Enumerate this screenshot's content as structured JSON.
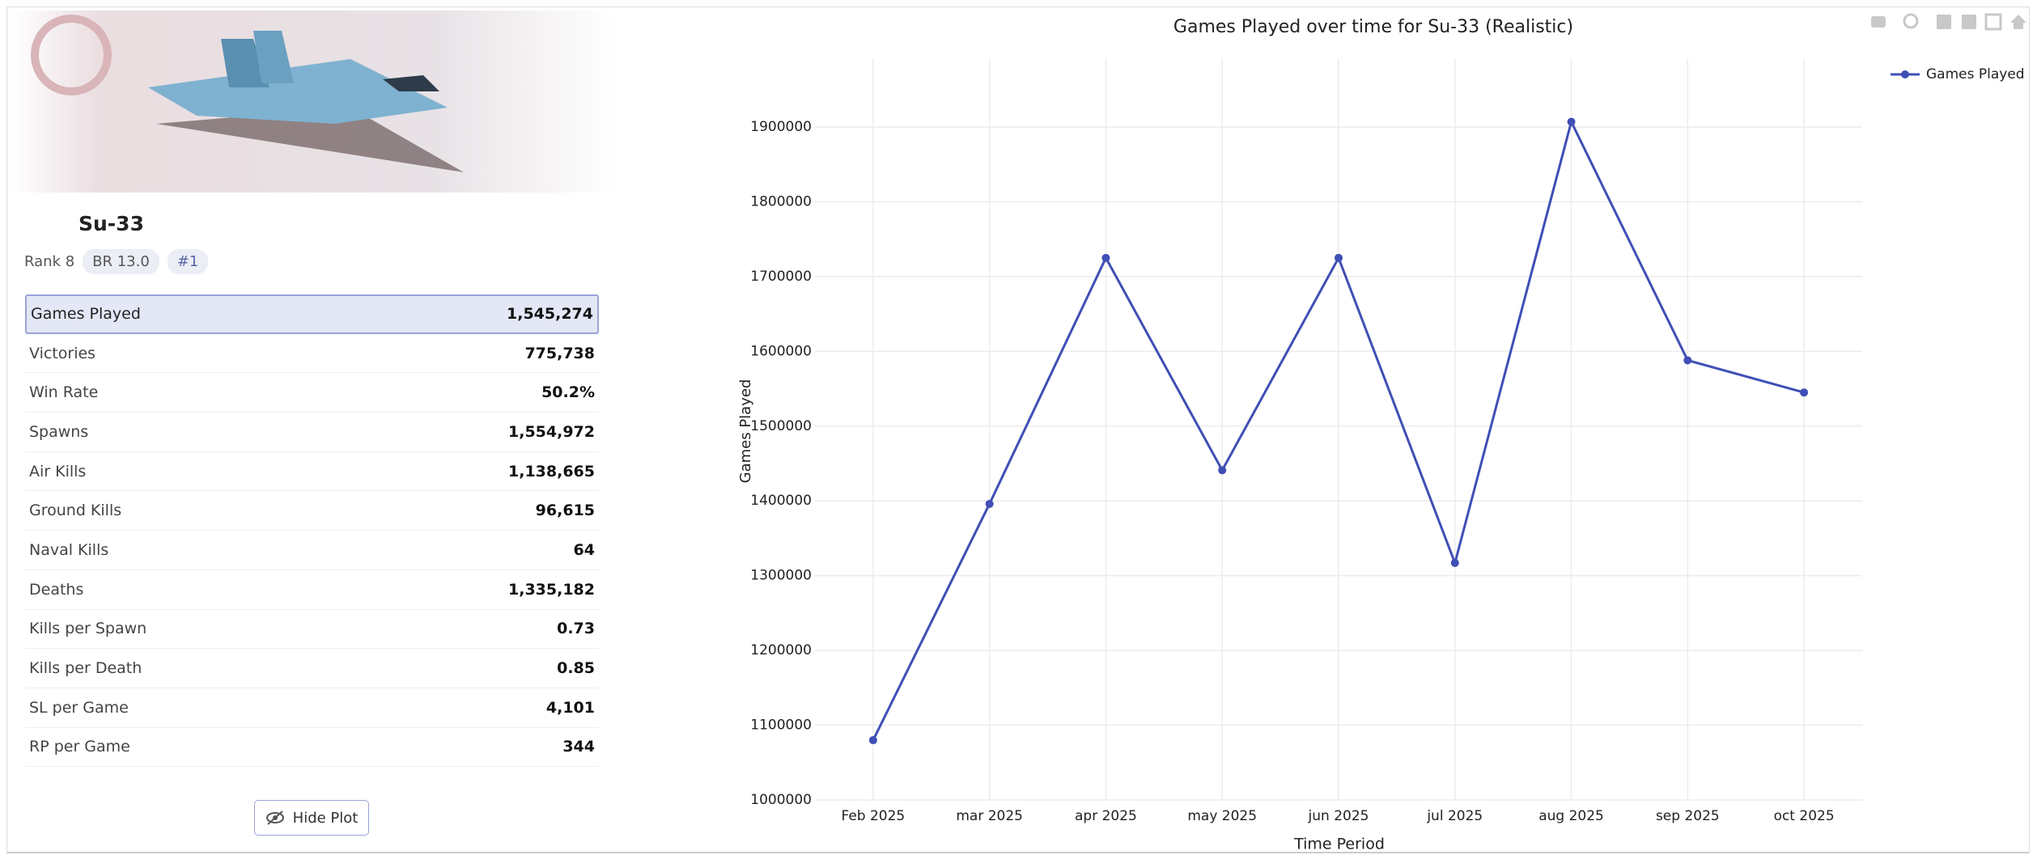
{
  "vehicle": {
    "name": "Su-33",
    "rank": "Rank 8",
    "br": "BR 13.0",
    "position": "#1",
    "stats": [
      {
        "label": "Games Played",
        "value": "1,545,274"
      },
      {
        "label": "Victories",
        "value": "775,738"
      },
      {
        "label": "Win Rate",
        "value": "50.2%"
      },
      {
        "label": "Spawns",
        "value": "1,554,972"
      },
      {
        "label": "Air Kills",
        "value": "1,138,665"
      },
      {
        "label": "Ground Kills",
        "value": "96,615"
      },
      {
        "label": "Naval Kills",
        "value": "64"
      },
      {
        "label": "Deaths",
        "value": "1,335,182"
      },
      {
        "label": "Kills per Spawn",
        "value": "0.73"
      },
      {
        "label": "Kills per Death",
        "value": "0.85"
      },
      {
        "label": "SL per Game",
        "value": "4,101"
      },
      {
        "label": "RP per Game",
        "value": "344"
      }
    ],
    "button": "Hide Plot"
  },
  "chart_data": {
    "type": "line",
    "title": "Games Played over time for Su-33 (Realistic)",
    "x_label": "Time Period",
    "y_label": "Games Played",
    "categories": [
      "Feb 2025",
      "mar 2025",
      "apr 2025",
      "may 2025",
      "jun 2025",
      "jul 2025",
      "aug 2025",
      "sep 2025",
      "oct 2025"
    ],
    "series": [
      {
        "name": "Games Played",
        "color": "#3f4fb5",
        "values": [
          1080000,
          1396000,
          1725000,
          1441000,
          1725000,
          1317000,
          1907000,
          1588000,
          1545000
        ]
      }
    ],
    "ylim": [
      1000000,
      1992000
    ],
    "yticks": [
      1000000,
      1100000,
      1200000,
      1300000,
      1400000,
      1500000,
      1600000,
      1700000,
      1800000,
      1900000
    ],
    "grid": true,
    "legend": "top-right"
  }
}
